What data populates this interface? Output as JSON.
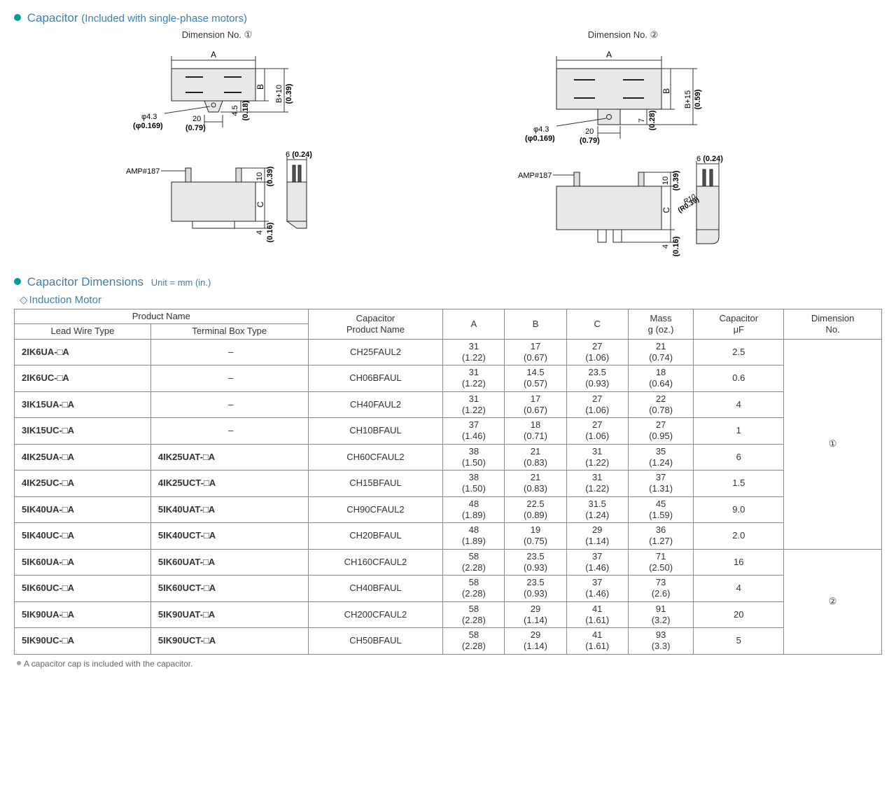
{
  "header1": {
    "title": "Capacitor",
    "note": "(Included with single-phase motors)"
  },
  "diagrams": {
    "left": {
      "title": "Dimension No. ①",
      "labels": {
        "A": "A",
        "B": "B",
        "phi": "φ4.3",
        "phi_in": "(φ0.169)",
        "twenty": "20",
        "twenty_in": "(0.79)",
        "four5": "4.5",
        "four5_in": "(0.18)",
        "bplus": "B+10",
        "bplus_in": "(0.39)",
        "amp": "AMP#187",
        "ten": "10",
        "ten_in": "(0.39)",
        "six": "6",
        "six_in": "(0.24)",
        "C": "C",
        "four": "4",
        "four_in": "(0.16)"
      }
    },
    "right": {
      "title": "Dimension No. ②",
      "labels": {
        "A": "A",
        "B": "B",
        "phi": "φ4.3",
        "phi_in": "(φ0.169)",
        "twenty": "20",
        "twenty_in": "(0.79)",
        "seven": "7",
        "seven_in": "(0.28)",
        "bplus": "B+15",
        "bplus_in": "(0.59)",
        "amp": "AMP#187",
        "ten": "10",
        "ten_in": "(0.39)",
        "six": "6",
        "six_in": "(0.24)",
        "C": "C",
        "four": "4",
        "four_in": "(0.16)",
        "r10": "R10",
        "r10_in": "(R0.39)"
      }
    }
  },
  "header2": {
    "title": "Capacitor Dimensions",
    "unit": "Unit = mm (in.)"
  },
  "subhead": "Induction Motor",
  "table": {
    "head": {
      "product_name": "Product Name",
      "lead": "Lead Wire Type",
      "terminal": "Terminal Box Type",
      "cap_name": "Capacitor\nProduct Name",
      "A": "A",
      "B": "B",
      "C": "C",
      "mass": "Mass\ng (oz.)",
      "uf": "Capacitor\nμF",
      "dimno": "Dimension\nNo."
    },
    "groups": [
      {
        "dim_no": "①",
        "rows": [
          {
            "lead": "2IK6UA-□A",
            "term": "–",
            "cap": "CH25FAUL2",
            "A": "31\n(1.22)",
            "B": "17\n(0.67)",
            "C": "27\n(1.06)",
            "mass": "21\n(0.74)",
            "uf": "2.5"
          },
          {
            "lead": "2IK6UC-□A",
            "term": "–",
            "cap": "CH06BFAUL",
            "A": "31\n(1.22)",
            "B": "14.5\n(0.57)",
            "C": "23.5\n(0.93)",
            "mass": "18\n(0.64)",
            "uf": "0.6"
          },
          {
            "lead": "3IK15UA-□A",
            "term": "–",
            "cap": "CH40FAUL2",
            "A": "31\n(1.22)",
            "B": "17\n(0.67)",
            "C": "27\n(1.06)",
            "mass": "22\n(0.78)",
            "uf": "4"
          },
          {
            "lead": "3IK15UC-□A",
            "term": "–",
            "cap": "CH10BFAUL",
            "A": "37\n(1.46)",
            "B": "18\n(0.71)",
            "C": "27\n(1.06)",
            "mass": "27\n(0.95)",
            "uf": "1"
          },
          {
            "lead": "4IK25UA-□A",
            "term": "4IK25UAT-□A",
            "cap": "CH60CFAUL2",
            "A": "38\n(1.50)",
            "B": "21\n(0.83)",
            "C": "31\n(1.22)",
            "mass": "35\n(1.24)",
            "uf": "6"
          },
          {
            "lead": "4IK25UC-□A",
            "term": "4IK25UCT-□A",
            "cap": "CH15BFAUL",
            "A": "38\n(1.50)",
            "B": "21\n(0.83)",
            "C": "31\n(1.22)",
            "mass": "37\n(1.31)",
            "uf": "1.5"
          },
          {
            "lead": "5IK40UA-□A",
            "term": "5IK40UAT-□A",
            "cap": "CH90CFAUL2",
            "A": "48\n(1.89)",
            "B": "22.5\n(0.89)",
            "C": "31.5\n(1.24)",
            "mass": "45\n(1.59)",
            "uf": "9.0"
          },
          {
            "lead": "5IK40UC-□A",
            "term": "5IK40UCT-□A",
            "cap": "CH20BFAUL",
            "A": "48\n(1.89)",
            "B": "19\n(0.75)",
            "C": "29\n(1.14)",
            "mass": "36\n(1.27)",
            "uf": "2.0"
          }
        ]
      },
      {
        "dim_no": "②",
        "rows": [
          {
            "lead": "5IK60UA-□A",
            "term": "5IK60UAT-□A",
            "cap": "CH160CFAUL2",
            "A": "58\n(2.28)",
            "B": "23.5\n(0.93)",
            "C": "37\n(1.46)",
            "mass": "71\n(2.50)",
            "uf": "16"
          },
          {
            "lead": "5IK60UC-□A",
            "term": "5IK60UCT-□A",
            "cap": "CH40BFAUL",
            "A": "58\n(2.28)",
            "B": "23.5\n(0.93)",
            "C": "37\n(1.46)",
            "mass": "73\n(2.6)",
            "uf": "4"
          },
          {
            "lead": "5IK90UA-□A",
            "term": "5IK90UAT-□A",
            "cap": "CH200CFAUL2",
            "A": "58\n(2.28)",
            "B": "29\n(1.14)",
            "C": "41\n(1.61)",
            "mass": "91\n(3.2)",
            "uf": "20"
          },
          {
            "lead": "5IK90UC-□A",
            "term": "5IK90UCT-□A",
            "cap": "CH50BFAUL",
            "A": "58\n(2.28)",
            "B": "29\n(1.14)",
            "C": "41\n(1.61)",
            "mass": "93\n(3.3)",
            "uf": "5"
          }
        ]
      }
    ]
  },
  "footnote": "A capacitor cap is included with the capacitor.",
  "svg": {
    "box_fill": "#e8e8e8",
    "stroke": "#222",
    "dim_color": "#333"
  }
}
